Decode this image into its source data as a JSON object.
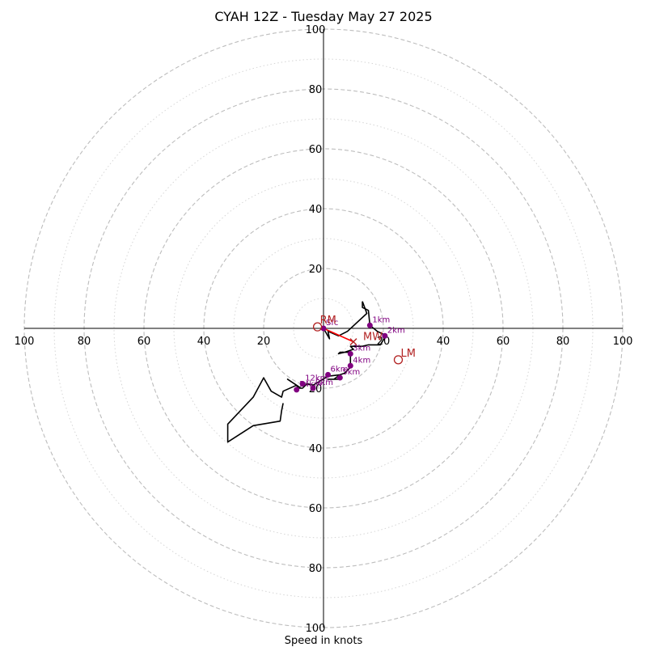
{
  "chart_data": {
    "type": "hodograph",
    "title": "CYAH 12Z - Tuesday May 27 2025",
    "xlabel": "Speed in knots",
    "max_speed": 100,
    "major_rings": [
      20,
      40,
      60,
      80,
      100
    ],
    "minor_rings": [
      10,
      30,
      50,
      70,
      90
    ],
    "x_tick_labels": [
      "100",
      "80",
      "60",
      "40",
      "20",
      "20",
      "40",
      "60",
      "80",
      "100"
    ],
    "x_tick_values": [
      -100,
      -80,
      -60,
      -40,
      -20,
      20,
      40,
      60,
      80,
      100
    ],
    "y_tick_labels": [
      "100",
      "80",
      "60",
      "40",
      "20",
      "20",
      "40",
      "60",
      "80",
      "100"
    ],
    "y_tick_values": [
      100,
      80,
      60,
      40,
      20,
      -20,
      -40,
      -60,
      -80,
      -100
    ],
    "colors": {
      "trace": "#000000",
      "height_marker": "#800080",
      "motion": "#b22222",
      "mean_wind_vector": "#ff0000",
      "rings": "#bdbdbd"
    },
    "trace": [
      [
        13,
        9
      ],
      [
        13,
        7
      ],
      [
        15,
        6
      ],
      [
        15.5,
        1
      ],
      [
        18,
        -1
      ],
      [
        20,
        -2
      ],
      [
        20.5,
        -3
      ],
      [
        19,
        -5.5
      ],
      [
        15,
        -5.5
      ],
      [
        13,
        -6
      ],
      [
        9,
        -6
      ],
      [
        10,
        -7
      ],
      [
        7,
        -8
      ],
      [
        5,
        -8.5
      ],
      [
        5.5,
        -8
      ],
      [
        8,
        -8
      ],
      [
        9,
        -8
      ],
      [
        9,
        -10
      ],
      [
        9,
        -13
      ],
      [
        7,
        -15
      ],
      [
        5.5,
        -15.5
      ],
      [
        3.5,
        -17
      ],
      [
        2,
        -17
      ],
      [
        1.5,
        -17
      ],
      [
        5.5,
        -17
      ],
      [
        5.5,
        -15.5
      ],
      [
        1.5,
        -16
      ],
      [
        -3.5,
        -19
      ],
      [
        -5.5,
        -18.5
      ],
      [
        -7,
        -20
      ],
      [
        -8.5,
        -20
      ],
      [
        -9,
        -19
      ],
      [
        -7.5,
        -20
      ],
      [
        -12,
        -17
      ],
      [
        -9,
        -19
      ],
      [
        -13.5,
        -21
      ],
      [
        -14,
        -23
      ],
      [
        -17.5,
        -21
      ],
      [
        -20,
        -16.5
      ],
      [
        -23.5,
        -23
      ],
      [
        -32,
        -32
      ],
      [
        -32,
        -38
      ],
      [
        -23.5,
        -32.5
      ],
      [
        -14.5,
        -31
      ],
      [
        -14,
        -27.5
      ],
      [
        -13.5,
        -25
      ]
    ],
    "trace_tail": [
      [
        13,
        9
      ],
      [
        14.5,
        5
      ],
      [
        8,
        -1
      ],
      [
        5,
        -2.5
      ],
      [
        1.5,
        -1
      ],
      [
        2,
        -3.5
      ],
      [
        0,
        0
      ]
    ],
    "height_markers": [
      {
        "label": "1km",
        "u": 15.5,
        "v": 1
      },
      {
        "label": "2km",
        "u": 20.5,
        "v": -2.5
      },
      {
        "label": "3km",
        "u": 9,
        "v": -8.5
      },
      {
        "label": "4km",
        "u": 9,
        "v": -12.5
      },
      {
        "label": "5km",
        "u": 5.5,
        "v": -16.5
      },
      {
        "label": "6km",
        "u": 1.5,
        "v": -15.5
      },
      {
        "label": "9km",
        "u": -3.5,
        "v": -20
      },
      {
        "label": "12km",
        "u": -7,
        "v": -18.5
      },
      {
        "label": "14km",
        "u": -9,
        "v": -20.5
      },
      {
        "label": "Sfc",
        "u": 0,
        "v": 0
      }
    ],
    "motions": [
      {
        "label": "RM",
        "u": -2,
        "v": 0.5
      },
      {
        "label": "LM",
        "u": 25,
        "v": -10.5
      },
      {
        "label": "MW",
        "u": 10,
        "v": -4.5
      }
    ],
    "mean_wind_vector": {
      "from": [
        0,
        0
      ],
      "to": [
        10,
        -4.5
      ]
    }
  }
}
